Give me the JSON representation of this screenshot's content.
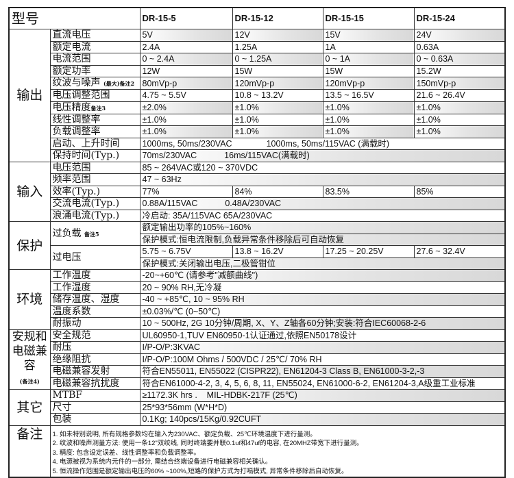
{
  "header": {
    "title": "型号",
    "models": [
      "DR-15-5",
      "DR-15-12",
      "DR-15-15",
      "DR-15-24"
    ]
  },
  "output": {
    "category": "输出",
    "rows": [
      {
        "label": "直流电压",
        "values": [
          "5V",
          "12V",
          "15V",
          "24V"
        ]
      },
      {
        "label": "额定电流",
        "values": [
          "2.4A",
          "1.25A",
          "1A",
          "0.63A"
        ]
      },
      {
        "label": "电流范围",
        "values": [
          "0 ~ 2.4A",
          "0 ~ 1.25A",
          "0 ~ 1A",
          "0 ~ 0.63A"
        ]
      },
      {
        "label": "额定功率",
        "values": [
          "12W",
          "15W",
          "15W",
          "15.2W"
        ]
      },
      {
        "label": "纹波与噪声",
        "note": "(最大)备注2",
        "values": [
          "80mVp-p",
          "120mVp-p",
          "120mVp-p",
          "150mVp-p"
        ]
      },
      {
        "label": "电压调整范围",
        "values": [
          "4.75 ~ 5.5V",
          "10.8 ~ 13.2V",
          "13.5 ~ 16.5V",
          "21.6 ~ 26.4V"
        ]
      },
      {
        "label": "电压精度",
        "note": "备注3",
        "values": [
          "±2.0%",
          "±1.0%",
          "±1.0%",
          "±1.0%"
        ]
      },
      {
        "label": "线性调整率",
        "values": [
          "±1.0%",
          "±1.0%",
          "±1.0%",
          "±1.0%"
        ]
      },
      {
        "label": "负载调整率",
        "values": [
          "±1.0%",
          "±1.0%",
          "±1.0%",
          "±1.0%"
        ]
      }
    ],
    "startup": {
      "label": "启动、上升时间",
      "a": "1000ms, 50ms/230VAC",
      "b": "1000ms, 50ms/115VAC (满载时)"
    },
    "hold": {
      "label": "保持时间(Typ.)",
      "a": "70ms/230VAC",
      "b": "16ms/115VAC(满载时)"
    }
  },
  "input": {
    "category": "输入",
    "voltage": {
      "label": "电压范围",
      "value": "85 ~ 264VAC或120 ~ 370VDC"
    },
    "freq": {
      "label": "频率范围",
      "value": "47 ~ 63Hz"
    },
    "eff": {
      "label": "效率(Typ.)",
      "values": [
        "77%",
        "84%",
        "83.5%",
        "85%"
      ]
    },
    "ac": {
      "label": "交流电流(Typ.)",
      "a": "0.88A/115VAC",
      "b": "0.48A/230VAC"
    },
    "inrush": {
      "label": "浪涌电流(Typ.)",
      "value": "冷启动: 35A/115VAC 65A/230VAC"
    }
  },
  "protection": {
    "category": "保护",
    "overload": {
      "label": "过负载",
      "note": "备注5",
      "line1": "额定输出功率的105%~160%",
      "line2": "保护模式:恒电流限制,负载异常条件移除后可自动恢复"
    },
    "overvoltage": {
      "label": "过电压",
      "values": [
        "5.75 ~ 6.75V",
        "13.8 ~ 16.2V",
        "17.25 ~ 20.25V",
        "27.6 ~ 32.4V"
      ],
      "line2": "保护模式:关闭输出电压,二极管钳位"
    }
  },
  "environment": {
    "category": "环境",
    "rows": [
      {
        "label": "工作温度",
        "value": "-20~+60℃ (请参考\"减额曲线\")"
      },
      {
        "label": "工作湿度",
        "value": "20 ~ 90% RH,无冷凝"
      },
      {
        "label": "储存温度、湿度",
        "value": "-40 ~ +85℃, 10 ~ 95% RH"
      },
      {
        "label": "温度系数",
        "value": "±0.03%/℃ (0~50℃)"
      },
      {
        "label": "耐振动",
        "value": "10 ~ 500Hz, 2G 10分钟/周期, X、Y、Z轴各60分钟;安装:符合IEC60068-2-6"
      }
    ]
  },
  "safety": {
    "category": "安规和电磁兼容",
    "category_note": "(备注4)",
    "rows": [
      {
        "label": "安全规范",
        "value": "UL60950-1,TUV EN60950-1认证通过,依照EN50178设计"
      },
      {
        "label": "耐压",
        "value": "I/P-O/P:3KVAC"
      },
      {
        "label": "绝缘阻抗",
        "value": "I/P-O/P:100M Ohms / 500VDC / 25℃/ 70% RH"
      },
      {
        "label": "电磁兼容发射",
        "value": "符合EN55011, EN55022 (CISPR22), EN61204-3 Class B, EN61000-3-2,-3"
      },
      {
        "label": "电磁兼容抗扰度",
        "value": "符合EN61000-4-2, 3, 4, 5, 6, 8, 11, EN55024, EN61000-6-2, EN61204-3,A级重工业标准"
      }
    ]
  },
  "other": {
    "category": "其它",
    "rows": [
      {
        "label": "MTBF",
        "value": "≥1172.3K hrs .    MIL-HDBK-217F (25℃)"
      },
      {
        "label": "尺寸",
        "value": "25*93*56mm (W*H*D)"
      },
      {
        "label": "包装",
        "value": "0.1Kg; 140pcs/15Kg/0.92CUFT"
      }
    ]
  },
  "notes": {
    "category": "备注",
    "items": [
      "1. 如未特别说明, 所有规格参数均在输入为230VAC、额定负载、25℃环境温度下进行量测。",
      "2. 纹波和噪声测量方法: 使用一条12\"双绞线, 同时终端要并联0.1uf和47uf的电容, 在20MHZ带宽下进行量测。",
      "3. 精度: 包含设定误差、线性调整率和负载调整率。",
      "4. 电源被视为系统内元件的一部分, 需结合终端设备进行电磁兼容相关确认。",
      "5. 恒流操作范围是额定输出电压的60% ~100%,短路的保护方式为打嗝模式, 异常条件移除后自动恢复。"
    ]
  }
}
